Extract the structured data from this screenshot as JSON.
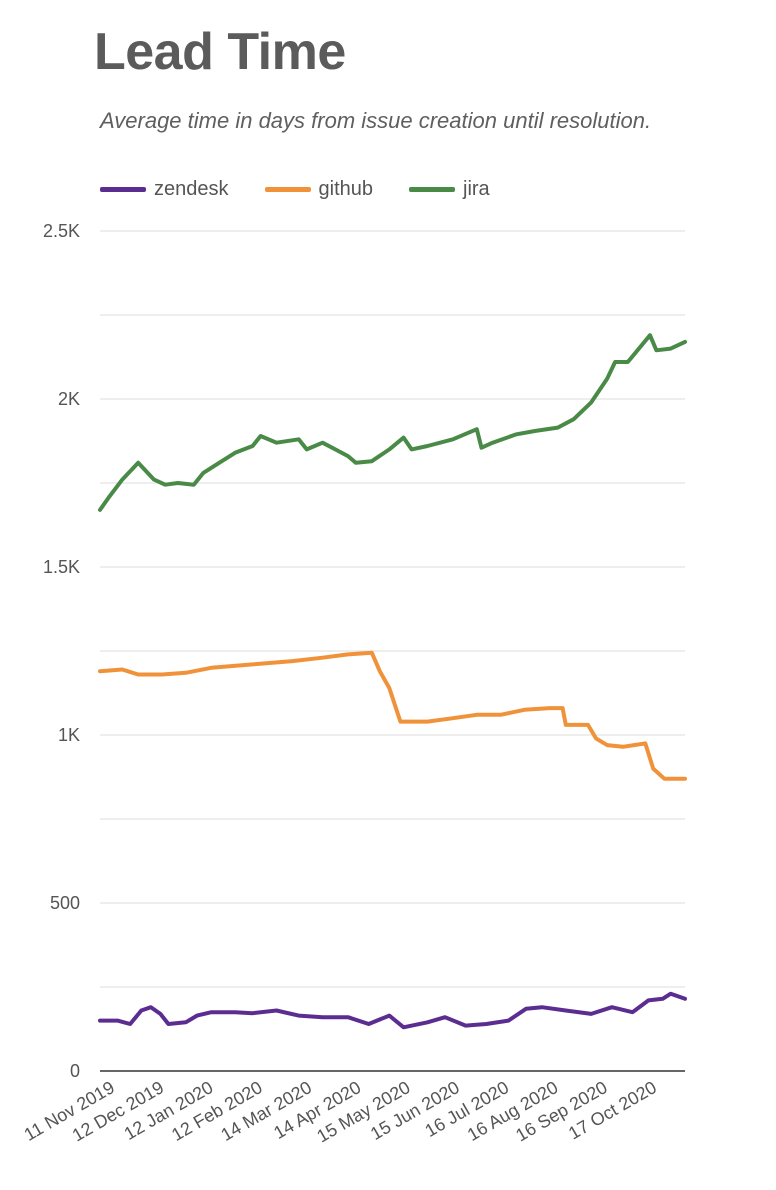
{
  "colors": {
    "zendesk": "#5c2d91",
    "github": "#f0923a",
    "jira": "#4a8a47"
  },
  "chart_data": {
    "type": "line",
    "title": "Lead Time",
    "subtitle": "Average time in days from issue creation until resolution.",
    "xlabel": "",
    "ylabel": "",
    "ylim": [
      0,
      2500
    ],
    "yticks": [
      0,
      500,
      1000,
      1500,
      2000,
      2500
    ],
    "ytick_labels": [
      "0",
      "500",
      "1K",
      "1.5K",
      "2K",
      "2.5K"
    ],
    "xlim": [
      "2019-11-01",
      "2020-11-03"
    ],
    "xtick_dates": [
      "2019-11-11",
      "2019-12-12",
      "2020-01-12",
      "2020-02-12",
      "2020-03-14",
      "2020-04-14",
      "2020-05-15",
      "2020-06-15",
      "2020-07-16",
      "2020-08-16",
      "2020-09-16",
      "2020-10-17"
    ],
    "xtick_labels": [
      "11 Nov 2019",
      "12 Dec 2019",
      "12 Jan 2020",
      "12 Feb 2020",
      "14 Mar 2020",
      "14 Apr 2020",
      "15 May 2020",
      "15 Jun 2020",
      "16 Jul 2020",
      "16 Aug 2020",
      "16 Sep 2020",
      "17 Oct 2020"
    ],
    "grid": true,
    "legend_position": "top-left",
    "series": [
      {
        "name": "zendesk",
        "color": "#5c2d91",
        "points": [
          [
            "2019-11-01",
            150
          ],
          [
            "2019-11-12",
            150
          ],
          [
            "2019-11-20",
            140
          ],
          [
            "2019-11-27",
            180
          ],
          [
            "2019-12-03",
            190
          ],
          [
            "2019-12-09",
            170
          ],
          [
            "2019-12-14",
            140
          ],
          [
            "2019-12-25",
            145
          ],
          [
            "2020-01-01",
            165
          ],
          [
            "2020-01-10",
            175
          ],
          [
            "2020-01-25",
            175
          ],
          [
            "2020-02-05",
            172
          ],
          [
            "2020-02-20",
            180
          ],
          [
            "2020-03-05",
            165
          ],
          [
            "2020-03-20",
            160
          ],
          [
            "2020-04-05",
            160
          ],
          [
            "2020-04-18",
            140
          ],
          [
            "2020-05-01",
            165
          ],
          [
            "2020-05-10",
            130
          ],
          [
            "2020-05-25",
            145
          ],
          [
            "2020-06-05",
            160
          ],
          [
            "2020-06-18",
            135
          ],
          [
            "2020-07-01",
            140
          ],
          [
            "2020-07-15",
            150
          ],
          [
            "2020-07-26",
            185
          ],
          [
            "2020-08-05",
            190
          ],
          [
            "2020-08-20",
            180
          ],
          [
            "2020-09-05",
            170
          ],
          [
            "2020-09-18",
            190
          ],
          [
            "2020-10-01",
            175
          ],
          [
            "2020-10-11",
            210
          ],
          [
            "2020-10-20",
            215
          ],
          [
            "2020-10-25",
            230
          ],
          [
            "2020-11-03",
            215
          ]
        ]
      },
      {
        "name": "github",
        "color": "#f0923a",
        "points": [
          [
            "2019-11-01",
            1190
          ],
          [
            "2019-11-15",
            1195
          ],
          [
            "2019-11-25",
            1180
          ],
          [
            "2019-12-10",
            1180
          ],
          [
            "2019-12-25",
            1185
          ],
          [
            "2020-01-10",
            1200
          ],
          [
            "2020-02-05",
            1210
          ],
          [
            "2020-03-01",
            1220
          ],
          [
            "2020-03-20",
            1230
          ],
          [
            "2020-04-05",
            1240
          ],
          [
            "2020-04-20",
            1245
          ],
          [
            "2020-04-25",
            1190
          ],
          [
            "2020-05-01",
            1140
          ],
          [
            "2020-05-08",
            1040
          ],
          [
            "2020-05-25",
            1040
          ],
          [
            "2020-06-10",
            1050
          ],
          [
            "2020-06-25",
            1060
          ],
          [
            "2020-07-10",
            1060
          ],
          [
            "2020-07-25",
            1075
          ],
          [
            "2020-08-10",
            1080
          ],
          [
            "2020-08-18",
            1080
          ],
          [
            "2020-08-20",
            1030
          ],
          [
            "2020-09-03",
            1030
          ],
          [
            "2020-09-08",
            990
          ],
          [
            "2020-09-15",
            970
          ],
          [
            "2020-09-25",
            965
          ],
          [
            "2020-10-09",
            975
          ],
          [
            "2020-10-14",
            900
          ],
          [
            "2020-10-21",
            870
          ],
          [
            "2020-11-03",
            870
          ]
        ]
      },
      {
        "name": "jira",
        "color": "#4a8a47",
        "points": [
          [
            "2019-11-01",
            1670
          ],
          [
            "2019-11-07",
            1710
          ],
          [
            "2019-11-15",
            1760
          ],
          [
            "2019-11-25",
            1810
          ],
          [
            "2019-12-05",
            1760
          ],
          [
            "2019-12-12",
            1745
          ],
          [
            "2019-12-20",
            1750
          ],
          [
            "2019-12-30",
            1745
          ],
          [
            "2020-01-05",
            1780
          ],
          [
            "2020-01-15",
            1810
          ],
          [
            "2020-01-25",
            1840
          ],
          [
            "2020-02-05",
            1860
          ],
          [
            "2020-02-10",
            1890
          ],
          [
            "2020-02-20",
            1870
          ],
          [
            "2020-03-05",
            1880
          ],
          [
            "2020-03-10",
            1850
          ],
          [
            "2020-03-20",
            1870
          ],
          [
            "2020-03-28",
            1850
          ],
          [
            "2020-04-05",
            1830
          ],
          [
            "2020-04-10",
            1810
          ],
          [
            "2020-04-20",
            1815
          ],
          [
            "2020-05-01",
            1850
          ],
          [
            "2020-05-10",
            1885
          ],
          [
            "2020-05-15",
            1850
          ],
          [
            "2020-05-25",
            1860
          ],
          [
            "2020-06-10",
            1880
          ],
          [
            "2020-06-25",
            1910
          ],
          [
            "2020-06-28",
            1855
          ],
          [
            "2020-07-05",
            1870
          ],
          [
            "2020-07-20",
            1895
          ],
          [
            "2020-08-01",
            1905
          ],
          [
            "2020-08-15",
            1915
          ],
          [
            "2020-08-25",
            1940
          ],
          [
            "2020-09-05",
            1990
          ],
          [
            "2020-09-15",
            2060
          ],
          [
            "2020-09-20",
            2110
          ],
          [
            "2020-09-28",
            2110
          ],
          [
            "2020-10-05",
            2150
          ],
          [
            "2020-10-12",
            2190
          ],
          [
            "2020-10-16",
            2145
          ],
          [
            "2020-10-25",
            2150
          ],
          [
            "2020-11-03",
            2170
          ]
        ]
      }
    ]
  }
}
